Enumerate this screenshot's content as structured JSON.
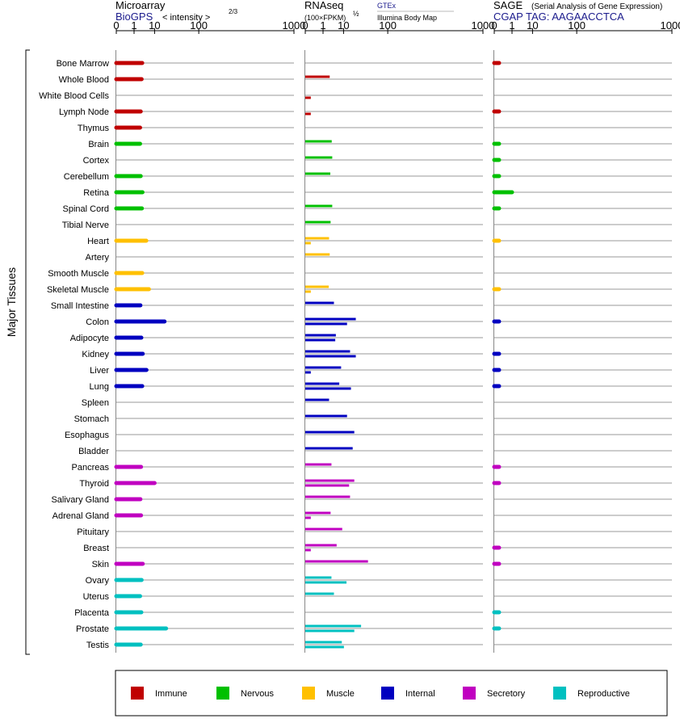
{
  "chart_data": [
    {
      "type": "bar",
      "panel": "microarray",
      "title": "Microarray",
      "source": "BioGPS",
      "scale_label": "< intensity >",
      "scale_exponent": "2/3",
      "ticks": [
        "0",
        "1",
        "10",
        "100",
        "1000"
      ],
      "tick_values": [
        0,
        1,
        10,
        100,
        1000
      ],
      "xlim": [
        0,
        1000
      ],
      "values": [
        {
          "tissue": "Bone Marrow",
          "a": 3.1
        },
        {
          "tissue": "Whole Blood",
          "a": 2.9
        },
        {
          "tissue": "White Blood Cells",
          "a": 0
        },
        {
          "tissue": "Lymph Node",
          "a": 2.6
        },
        {
          "tissue": "Thymus",
          "a": 2.4
        },
        {
          "tissue": "Brain",
          "a": 2.4
        },
        {
          "tissue": "Cortex",
          "a": 0
        },
        {
          "tissue": "Cerebellum",
          "a": 2.6
        },
        {
          "tissue": "Retina",
          "a": 3.2
        },
        {
          "tissue": "Spinal Cord",
          "a": 3.0
        },
        {
          "tissue": "Tibial Nerve",
          "a": 0
        },
        {
          "tissue": "Heart",
          "a": 4.8
        },
        {
          "tissue": "Artery",
          "a": 0
        },
        {
          "tissue": "Smooth Muscle",
          "a": 3.1
        },
        {
          "tissue": "Skeletal Muscle",
          "a": 6.2
        },
        {
          "tissue": "Small Intestine",
          "a": 2.5
        },
        {
          "tissue": "Colon",
          "a": 20
        },
        {
          "tissue": "Adipocyte",
          "a": 2.8
        },
        {
          "tissue": "Kidney",
          "a": 3.3
        },
        {
          "tissue": "Liver",
          "a": 4.9
        },
        {
          "tissue": "Lung",
          "a": 3.1
        },
        {
          "tissue": "Spleen",
          "a": 0
        },
        {
          "tissue": "Stomach",
          "a": 0
        },
        {
          "tissue": "Esophagus",
          "a": 0
        },
        {
          "tissue": "Bladder",
          "a": 0
        },
        {
          "tissue": "Pancreas",
          "a": 2.7
        },
        {
          "tissue": "Thyroid",
          "a": 10
        },
        {
          "tissue": "Salivary Gland",
          "a": 2.5
        },
        {
          "tissue": "Adrenal Gland",
          "a": 2.7
        },
        {
          "tissue": "Pituitary",
          "a": 0
        },
        {
          "tissue": "Breast",
          "a": 0
        },
        {
          "tissue": "Skin",
          "a": 3.3
        },
        {
          "tissue": "Ovary",
          "a": 2.9
        },
        {
          "tissue": "Uterus",
          "a": 2.4
        },
        {
          "tissue": "Placenta",
          "a": 2.8
        },
        {
          "tissue": "Prostate",
          "a": 22
        },
        {
          "tissue": "Testis",
          "a": 2.6
        }
      ]
    },
    {
      "type": "bar",
      "panel": "rnaseq",
      "title": "RNAseq",
      "scale_label": "(100×FPKM)",
      "scale_exponent": "½",
      "source_a": "GTEx",
      "source_b": "Illumina Body Map",
      "ticks": [
        "0",
        "1",
        "10",
        "100",
        "1000"
      ],
      "tick_values": [
        0,
        1,
        10,
        100,
        1000
      ],
      "xlim": [
        0,
        1000
      ],
      "values": [
        {
          "tissue": "Bone Marrow",
          "a": 0,
          "b": 0
        },
        {
          "tissue": "Whole Blood",
          "a": 2.6,
          "b": 0
        },
        {
          "tissue": "White Blood Cells",
          "a": 0,
          "b": 0.03
        },
        {
          "tissue": "Lymph Node",
          "a": 0,
          "b": 0.03
        },
        {
          "tissue": "Thymus",
          "a": 0,
          "b": 0
        },
        {
          "tissue": "Brain",
          "a": 3.3,
          "b": 0
        },
        {
          "tissue": "Cortex",
          "a": 3.5,
          "b": 0
        },
        {
          "tissue": "Cerebellum",
          "a": 2.8,
          "b": 0
        },
        {
          "tissue": "Retina",
          "a": 0,
          "b": 0
        },
        {
          "tissue": "Spinal Cord",
          "a": 3.5,
          "b": 0
        },
        {
          "tissue": "Tibial Nerve",
          "a": 2.9,
          "b": 0
        },
        {
          "tissue": "Heart",
          "a": 2.4,
          "b": 0.03
        },
        {
          "tissue": "Artery",
          "a": 2.6,
          "b": 0
        },
        {
          "tissue": "Smooth Muscle",
          "a": 0,
          "b": 0
        },
        {
          "tissue": "Skeletal Muscle",
          "a": 2.3,
          "b": 0.03
        },
        {
          "tissue": "Small Intestine",
          "a": 4.2,
          "b": 0
        },
        {
          "tissue": "Colon",
          "a": 23,
          "b": 13
        },
        {
          "tissue": "Adipocyte",
          "a": 5.1,
          "b": 4.8
        },
        {
          "tissue": "Kidney",
          "a": 16,
          "b": 23
        },
        {
          "tissue": "Liver",
          "a": 8.2,
          "b": 0.03
        },
        {
          "tissue": "Lung",
          "a": 7,
          "b": 17
        },
        {
          "tissue": "Spleen",
          "a": 2.4,
          "b": 0
        },
        {
          "tissue": "Stomach",
          "a": 13,
          "b": 0
        },
        {
          "tissue": "Esophagus",
          "a": 21,
          "b": 0
        },
        {
          "tissue": "Bladder",
          "a": 19,
          "b": 0
        },
        {
          "tissue": "Pancreas",
          "a": 3.2,
          "b": 0
        },
        {
          "tissue": "Thyroid",
          "a": 21,
          "b": 15
        },
        {
          "tissue": "Salivary Gland",
          "a": 16,
          "b": 0
        },
        {
          "tissue": "Adrenal Gland",
          "a": 2.9,
          "b": 0.03
        },
        {
          "tissue": "Pituitary",
          "a": 9,
          "b": 0
        },
        {
          "tissue": "Breast",
          "a": 5.5,
          "b": 0.03
        },
        {
          "tissue": "Skin",
          "a": 44,
          "b": 0
        },
        {
          "tissue": "Ovary",
          "a": 3.2,
          "b": 12.5
        },
        {
          "tissue": "Uterus",
          "a": 4.2,
          "b": 0
        },
        {
          "tissue": "Placenta",
          "a": 0,
          "b": 0
        },
        {
          "tissue": "Prostate",
          "a": 31,
          "b": 21
        },
        {
          "tissue": "Testis",
          "a": 8.7,
          "b": 10.3
        }
      ]
    },
    {
      "type": "bar",
      "panel": "sage",
      "title": "SAGE",
      "subtitle": "(Serial Analysis of Gene Expression)",
      "tag_label": "CGAP TAG: AAGAACCTCA",
      "ticks": [
        "0",
        "1",
        "10",
        "100",
        "1000"
      ],
      "tick_values": [
        0,
        1,
        10,
        100,
        1000
      ],
      "xlim": [
        0,
        1000
      ],
      "values": [
        {
          "tissue": "Bone Marrow",
          "a": 0.02
        },
        {
          "tissue": "Whole Blood",
          "a": 0
        },
        {
          "tissue": "White Blood Cells",
          "a": 0
        },
        {
          "tissue": "Lymph Node",
          "a": 0.02
        },
        {
          "tissue": "Thymus",
          "a": 0
        },
        {
          "tissue": "Brain",
          "a": 0.02
        },
        {
          "tissue": "Cortex",
          "a": 0.02
        },
        {
          "tissue": "Cerebellum",
          "a": 0.02
        },
        {
          "tissue": "Retina",
          "a": 1.0
        },
        {
          "tissue": "Spinal Cord",
          "a": 0.02
        },
        {
          "tissue": "Tibial Nerve",
          "a": 0
        },
        {
          "tissue": "Heart",
          "a": 0.02
        },
        {
          "tissue": "Artery",
          "a": 0
        },
        {
          "tissue": "Smooth Muscle",
          "a": 0
        },
        {
          "tissue": "Skeletal Muscle",
          "a": 0.02
        },
        {
          "tissue": "Small Intestine",
          "a": 0
        },
        {
          "tissue": "Colon",
          "a": 0.02
        },
        {
          "tissue": "Adipocyte",
          "a": 0
        },
        {
          "tissue": "Kidney",
          "a": 0.02
        },
        {
          "tissue": "Liver",
          "a": 0.02
        },
        {
          "tissue": "Lung",
          "a": 0.02
        },
        {
          "tissue": "Spleen",
          "a": 0
        },
        {
          "tissue": "Stomach",
          "a": 0
        },
        {
          "tissue": "Esophagus",
          "a": 0
        },
        {
          "tissue": "Bladder",
          "a": 0
        },
        {
          "tissue": "Pancreas",
          "a": 0.02
        },
        {
          "tissue": "Thyroid",
          "a": 0.02
        },
        {
          "tissue": "Salivary Gland",
          "a": 0
        },
        {
          "tissue": "Adrenal Gland",
          "a": 0
        },
        {
          "tissue": "Pituitary",
          "a": 0
        },
        {
          "tissue": "Breast",
          "a": 0.02
        },
        {
          "tissue": "Skin",
          "a": 0.02
        },
        {
          "tissue": "Ovary",
          "a": 0
        },
        {
          "tissue": "Uterus",
          "a": 0
        },
        {
          "tissue": "Placenta",
          "a": 0.02
        },
        {
          "tissue": "Prostate",
          "a": 0.02
        },
        {
          "tissue": "Testis",
          "a": 0
        }
      ]
    }
  ],
  "tissue_groups": [
    {
      "group": "Immune",
      "color": "#c00000",
      "tissues": [
        "Bone Marrow",
        "Whole Blood",
        "White Blood Cells",
        "Lymph Node",
        "Thymus"
      ]
    },
    {
      "group": "Nervous",
      "color": "#00c000",
      "tissues": [
        "Brain",
        "Cortex",
        "Cerebellum",
        "Retina",
        "Spinal Cord",
        "Tibial Nerve"
      ]
    },
    {
      "group": "Muscle",
      "color": "#ffc000",
      "tissues": [
        "Heart",
        "Artery",
        "Smooth Muscle",
        "Skeletal Muscle"
      ]
    },
    {
      "group": "Internal",
      "color": "#0000c0",
      "tissues": [
        "Small Intestine",
        "Colon",
        "Adipocyte",
        "Kidney",
        "Liver",
        "Lung",
        "Spleen",
        "Stomach",
        "Esophagus",
        "Bladder"
      ]
    },
    {
      "group": "Secretory",
      "color": "#c000c0",
      "tissues": [
        "Pancreas",
        "Thyroid",
        "Salivary Gland",
        "Adrenal Gland",
        "Pituitary",
        "Breast",
        "Skin"
      ]
    },
    {
      "group": "Reproductive",
      "color": "#00c0c0",
      "tissues": [
        "Ovary",
        "Uterus",
        "Placenta",
        "Prostate",
        "Testis"
      ]
    }
  ],
  "y_group_label": "Major Tissues",
  "legend": [
    {
      "label": "Immune",
      "color": "#c00000"
    },
    {
      "label": "Nervous",
      "color": "#00c000"
    },
    {
      "label": "Muscle",
      "color": "#ffc000"
    },
    {
      "label": "Internal",
      "color": "#0000c0"
    },
    {
      "label": "Secretory",
      "color": "#c000c0"
    },
    {
      "label": "Reproductive",
      "color": "#00c0c0"
    }
  ]
}
